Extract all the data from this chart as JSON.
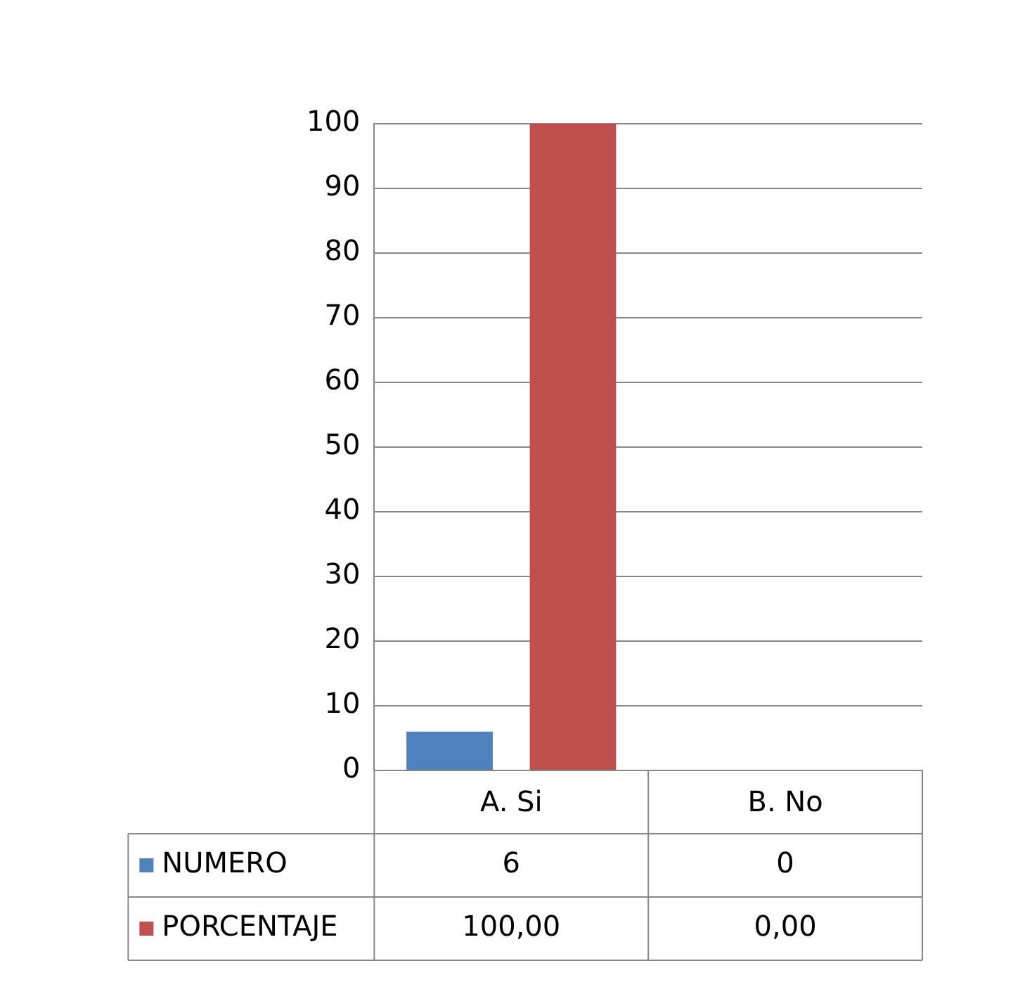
{
  "chart_data": {
    "type": "bar",
    "categories": [
      "A. Si",
      "B. No"
    ],
    "series": [
      {
        "name": "NUMERO",
        "color": "#4f81bd",
        "values": [
          6,
          0
        ],
        "value_labels": [
          "6",
          "0"
        ]
      },
      {
        "name": "PORCENTAJE",
        "color": "#c0504d",
        "values": [
          100,
          0
        ],
        "value_labels": [
          "100,00",
          "0,00"
        ]
      }
    ],
    "ylim": [
      0,
      100
    ],
    "yticks": [
      0,
      10,
      20,
      30,
      40,
      50,
      60,
      70,
      80,
      90,
      100
    ],
    "grid": "y",
    "legend": "bottom"
  }
}
